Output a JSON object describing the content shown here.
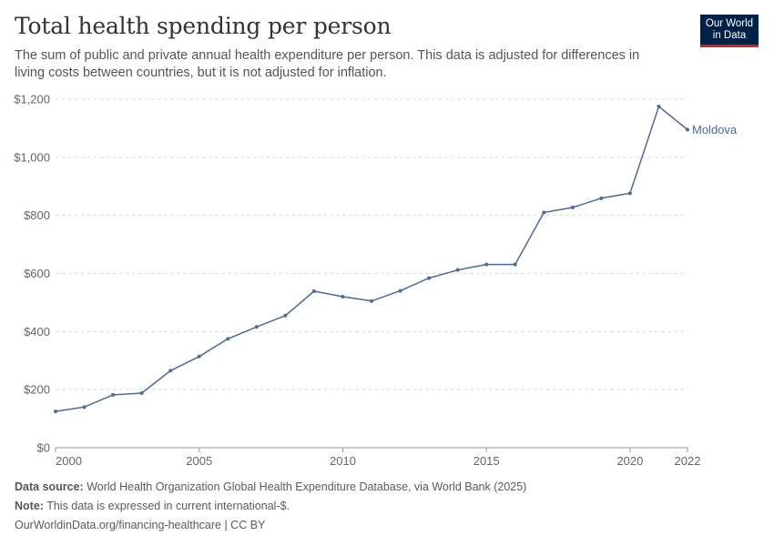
{
  "header": {
    "title": "Total health spending per person",
    "subtitle": "The sum of public and private annual health expenditure per person. This data is adjusted for differences in living costs between countries, but it is not adjusted for inflation."
  },
  "logo": {
    "line1": "Our World",
    "line2": "in Data"
  },
  "footer": {
    "source_label": "Data source:",
    "source_text": "World Health Organization Global Health Expenditure Database, via World Bank (2025)",
    "note_label": "Note:",
    "note_text": "This data is expressed in current international-$.",
    "link_text": "OurWorldinData.org/financing-healthcare | CC BY"
  },
  "colors": {
    "series": "#4c6a9c",
    "grid": "#dddddd",
    "axis": "#999999",
    "brand": "#002147",
    "brand_accent": "#ce261e"
  },
  "chart_data": {
    "type": "line",
    "title": "Total health spending per person",
    "xlabel": "",
    "ylabel": "",
    "xlim": [
      2000,
      2022
    ],
    "ylim": [
      0,
      1200
    ],
    "x_ticks": [
      2000,
      2005,
      2010,
      2015,
      2020,
      2022
    ],
    "x_tick_labels": [
      "2000",
      "2005",
      "2010",
      "2015",
      "2020",
      "2022"
    ],
    "y_ticks": [
      0,
      200,
      400,
      600,
      800,
      1000,
      1200
    ],
    "y_tick_labels": [
      "$0",
      "$200",
      "$400",
      "$600",
      "$800",
      "$1,000",
      "$1,200"
    ],
    "grid": "horizontal dashed",
    "series": [
      {
        "name": "Moldova",
        "x": [
          2000,
          2001,
          2002,
          2003,
          2004,
          2005,
          2006,
          2007,
          2008,
          2009,
          2010,
          2011,
          2012,
          2013,
          2014,
          2015,
          2016,
          2017,
          2018,
          2019,
          2020,
          2021,
          2022
        ],
        "values": [
          125,
          140,
          182,
          188,
          265,
          314,
          375,
          416,
          455,
          539,
          520,
          505,
          540,
          584,
          612,
          631,
          631,
          810,
          827,
          859,
          876,
          1175,
          1095
        ]
      }
    ]
  }
}
